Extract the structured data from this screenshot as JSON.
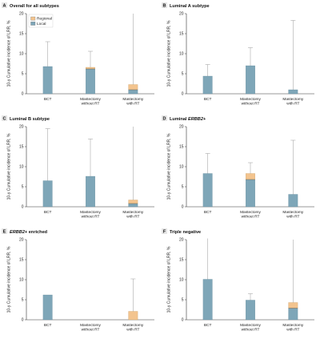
{
  "colors": {
    "local": "#7ea6b8",
    "regional": "#f3c48e",
    "error_bar": "#9a9a9a",
    "axis": "#333333",
    "badge": "#e6e6e6"
  },
  "legend": {
    "items": [
      {
        "name": "Regional",
        "color": "#f3c48e"
      },
      {
        "name": "Local",
        "color": "#7ea6b8"
      }
    ]
  },
  "chart_data": [
    {
      "panel": "A",
      "type": "bar",
      "stacked": true,
      "title": "Overall for all subtypes",
      "ylabel": "10-y Cumulative incidence of LRR, %",
      "ylim": [
        0,
        20
      ],
      "yticks": [
        0,
        5,
        10,
        15,
        20
      ],
      "categories": [
        "BCT",
        "Mastectomy without RT",
        "Mastectomy with RT"
      ],
      "category_lines": [
        [
          "BCT"
        ],
        [
          "Mastectomy",
          "without RT"
        ],
        [
          "Mastectomy",
          "with RT"
        ]
      ],
      "series": [
        {
          "name": "Local",
          "values": [
            6.8,
            6.2,
            1.0
          ]
        },
        {
          "name": "Regional",
          "values": [
            0,
            0.4,
            1.3
          ]
        }
      ],
      "error_upper": [
        13.0,
        10.6,
        20.0
      ],
      "legend": true
    },
    {
      "panel": "B",
      "type": "bar",
      "stacked": true,
      "title": "Luminal A subtype",
      "ylabel": "10-y Cumulative incidence of LRR, %",
      "ylim": [
        0,
        20
      ],
      "yticks": [
        0,
        5,
        10,
        15,
        20
      ],
      "categories": [
        "BCT",
        "Mastectomy without RT",
        "Mastectomy with RT"
      ],
      "category_lines": [
        [
          "BCT"
        ],
        [
          "Mastectomy",
          "without RT"
        ],
        [
          "Mastectomy",
          "with RT"
        ]
      ],
      "series": [
        {
          "name": "Local",
          "values": [
            4.4,
            7.0,
            1.0
          ]
        },
        {
          "name": "Regional",
          "values": [
            0,
            0,
            0
          ]
        }
      ],
      "error_upper": [
        7.3,
        11.5,
        18.3
      ],
      "legend": false
    },
    {
      "panel": "C",
      "type": "bar",
      "stacked": true,
      "title": "Luminal B subtype",
      "ylabel": "10-y Cumulative incidence of LRR, %",
      "ylim": [
        0,
        20
      ],
      "yticks": [
        0,
        5,
        10,
        15,
        20
      ],
      "categories": [
        "BCT",
        "Mastectomy without RT",
        "Mastectomy with RT"
      ],
      "category_lines": [
        [
          "BCT"
        ],
        [
          "Mastectomy",
          "without RT"
        ],
        [
          "Mastectomy",
          "with RT"
        ]
      ],
      "series": [
        {
          "name": "Local",
          "values": [
            6.5,
            7.6,
            0.8
          ]
        },
        {
          "name": "Regional",
          "values": [
            0,
            0,
            0.9
          ]
        }
      ],
      "error_upper": [
        19.5,
        16.9,
        20.0
      ],
      "legend": false
    },
    {
      "panel": "D",
      "type": "bar",
      "stacked": true,
      "title": "Luminal ERBB2+",
      "ylabel": "10-y Cumulative incidence of LRR, %",
      "ylim": [
        0,
        20
      ],
      "yticks": [
        0,
        5,
        10,
        15,
        20
      ],
      "categories": [
        "BCT",
        "Mastectomy without RT",
        "Mastectomy with RT"
      ],
      "category_lines": [
        [
          "BCT"
        ],
        [
          "Mastectomy",
          "without RT"
        ],
        [
          "Mastectomy",
          "with RT"
        ]
      ],
      "series": [
        {
          "name": "Local",
          "values": [
            8.3,
            6.8,
            3.1
          ]
        },
        {
          "name": "Regional",
          "values": [
            0,
            1.5,
            0
          ]
        }
      ],
      "error_upper": [
        13.3,
        11.0,
        16.6
      ],
      "legend": false
    },
    {
      "panel": "E",
      "type": "bar",
      "stacked": true,
      "title": "ERBB2+ enriched",
      "ylabel": "10-y Cumulative incidence of LRR, %",
      "ylim": [
        0,
        20
      ],
      "yticks": [
        0,
        5,
        10,
        15,
        20
      ],
      "categories": [
        "BCT",
        "Mastectomy without RT",
        "Mastectomy with RT"
      ],
      "category_lines": [
        [
          "BCT"
        ],
        [
          "Mastectomy",
          "without RT"
        ],
        [
          "Mastectomy",
          "with RT"
        ]
      ],
      "series": [
        {
          "name": "Local",
          "values": [
            6.2,
            0,
            0
          ]
        },
        {
          "name": "Regional",
          "values": [
            0,
            0,
            2.1
          ]
        }
      ],
      "error_upper": [
        null,
        null,
        10.2
      ],
      "legend": false
    },
    {
      "panel": "F",
      "type": "bar",
      "stacked": true,
      "title": "Triple negative",
      "ylabel": "10-y Cumulative incidence of LRR, %",
      "ylim": [
        0,
        20
      ],
      "yticks": [
        0,
        5,
        10,
        15,
        20
      ],
      "categories": [
        "BCT",
        "Mastectomy without RT",
        "Mastectomy with RT"
      ],
      "category_lines": [
        [
          "BCT"
        ],
        [
          "Mastectomy",
          "without RT"
        ],
        [
          "Mastectomy",
          "with RT"
        ]
      ],
      "series": [
        {
          "name": "Local",
          "values": [
            10.1,
            4.9,
            2.9
          ]
        },
        {
          "name": "Regional",
          "values": [
            0,
            0,
            1.4
          ]
        }
      ],
      "error_upper": [
        20.3,
        6.5,
        20.0
      ],
      "legend": false
    }
  ]
}
